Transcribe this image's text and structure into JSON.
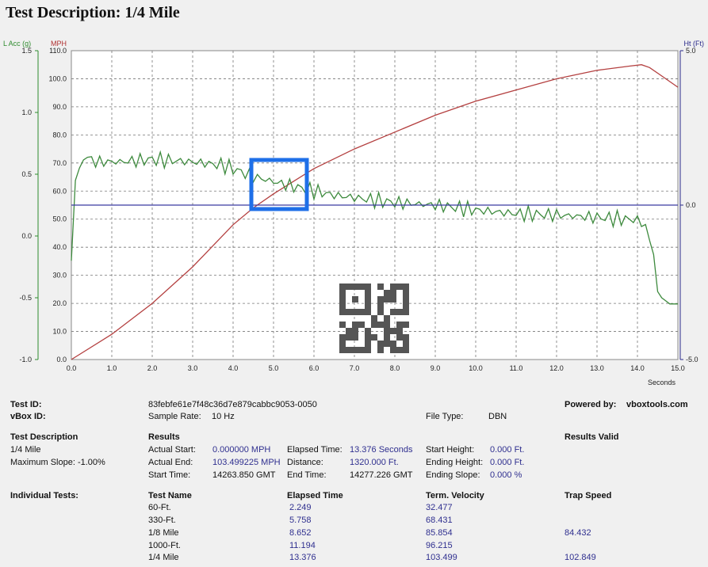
{
  "title": "Test Description: 1/4 Mile",
  "chart_data": {
    "type": "line",
    "x_unit": "Seconds",
    "xlim": [
      0,
      15
    ],
    "x_ticks": [
      "0.0",
      "1.0",
      "2.0",
      "3.0",
      "4.0",
      "5.0",
      "6.0",
      "7.0",
      "8.0",
      "9.0",
      "10.0",
      "11.0",
      "12.0",
      "13.0",
      "14.0",
      "15.0"
    ],
    "axes": {
      "lacc": {
        "label": "L Acc (g)",
        "range": [
          -1.0,
          1.5
        ],
        "ticks": [
          "1.5",
          "1.0",
          "0.5",
          "0.0",
          "-0.5",
          "-1.0"
        ],
        "color": "#2e8b2e"
      },
      "mph": {
        "label": "MPH",
        "range": [
          0,
          110
        ],
        "ticks": [
          "110.0",
          "100.0",
          "90.0",
          "80.0",
          "70.0",
          "60.0",
          "50.0",
          "40.0",
          "30.0",
          "20.0",
          "10.0",
          "0.0"
        ],
        "color": "#b03030"
      },
      "ht": {
        "label": "Ht (Ft)",
        "range": [
          -5,
          5
        ],
        "ticks": [
          "5.0",
          "0.0",
          "-5.0"
        ],
        "color": "#2a2a8a"
      }
    },
    "series": [
      {
        "axis": "mph",
        "color": "#b44040",
        "x": [
          0,
          1,
          2,
          3,
          4,
          4.5,
          5,
          6,
          7,
          8,
          9,
          10,
          11,
          12,
          13,
          13.8,
          14.1,
          14.3,
          14.6,
          15
        ],
        "y": [
          0,
          9,
          20,
          33,
          48,
          54,
          59,
          68,
          75,
          81,
          87,
          92,
          96,
          100,
          103,
          104.5,
          105,
          104,
          101,
          97
        ]
      },
      {
        "axis": "lacc",
        "color": "#3d8a3d",
        "x": [
          0,
          0.1,
          0.3,
          0.6,
          1.2,
          2,
          3,
          3.8,
          4.5,
          5.5,
          6.5,
          8,
          9,
          10,
          11,
          12,
          13,
          14,
          14.2,
          14.4,
          14.5,
          14.6,
          14.8,
          15
        ],
        "y": [
          -0.2,
          0.45,
          0.65,
          0.6,
          0.6,
          0.62,
          0.6,
          0.57,
          0.48,
          0.4,
          0.33,
          0.27,
          0.25,
          0.21,
          0.18,
          0.17,
          0.15,
          0.13,
          0.08,
          -0.15,
          -0.45,
          -0.5,
          -0.55,
          -0.55
        ]
      },
      {
        "axis": "ht",
        "color": "#3a3aa0",
        "x": [
          0,
          15
        ],
        "y": [
          0,
          0
        ]
      }
    ],
    "grid": true
  },
  "qr_icon": "qr-code-icon",
  "info": {
    "test_id_label": "Test ID:",
    "test_id_value": "83febfe61e7f48c36d7e879cabbc9053-0050",
    "vbox_id_label": "vBox ID:",
    "powered_by_label": "Powered by:",
    "powered_by_value": "vboxtools.com",
    "sample_rate_label": "Sample Rate:",
    "sample_rate_value": "10 Hz",
    "file_type_label": "File Type:",
    "file_type_value": "DBN",
    "test_desc_label": "Test Description",
    "test_desc_value": "1/4 Mile",
    "max_slope": "Maximum Slope:  -1.00%",
    "results_label": "Results",
    "results_valid": "Results Valid",
    "actual_start_label": "Actual Start:",
    "actual_start_value": "0.000000 MPH",
    "actual_end_label": "Actual End:",
    "actual_end_value": "103.499225 MPH",
    "start_time_label": "Start Time:",
    "start_time_value": "14263.850 GMT",
    "elapsed_time_label": "Elapsed Time:",
    "elapsed_time_value": "13.376 Seconds",
    "distance_label": "Distance:",
    "distance_value": "1320.000 Ft.",
    "end_time_label": "End Time:",
    "end_time_value": "14277.226 GMT",
    "start_height_label": "Start Height:",
    "start_height_value": "0.000 Ft.",
    "ending_height_label": "Ending Height:",
    "ending_height_value": "0.000 Ft.",
    "ending_slope_label": "Ending Slope:",
    "ending_slope_value": "0.000 %"
  },
  "tests": {
    "label": "Individual Tests:",
    "headers": [
      "Test Name",
      "Elapsed Time",
      "Term. Velocity",
      "Trap Speed"
    ],
    "rows": [
      {
        "name": "60-Ft.",
        "elapsed": "2.249",
        "velocity": "32.477",
        "trap": ""
      },
      {
        "name": "330-Ft.",
        "elapsed": "5.758",
        "velocity": "68.431",
        "trap": ""
      },
      {
        "name": "1/8 Mile",
        "elapsed": "8.652",
        "velocity": "85.854",
        "trap": "84.432"
      },
      {
        "name": "1000-Ft.",
        "elapsed": "11.194",
        "velocity": "96.215",
        "trap": ""
      },
      {
        "name": "1/4 Mile",
        "elapsed": "13.376",
        "velocity": "103.499",
        "trap": "102.849"
      }
    ]
  }
}
